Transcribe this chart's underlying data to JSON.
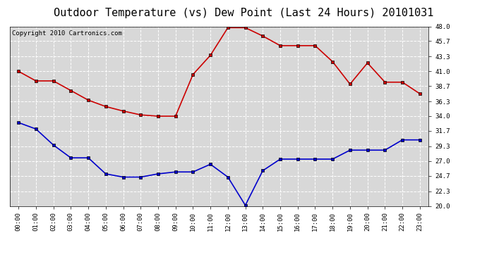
{
  "title": "Outdoor Temperature (vs) Dew Point (Last 24 Hours) 20101031",
  "copyright": "Copyright 2010 Cartronics.com",
  "hours": [
    "00:00",
    "01:00",
    "02:00",
    "03:00",
    "04:00",
    "05:00",
    "06:00",
    "07:00",
    "08:00",
    "09:00",
    "10:00",
    "11:00",
    "12:00",
    "13:00",
    "14:00",
    "15:00",
    "16:00",
    "17:00",
    "18:00",
    "19:00",
    "20:00",
    "21:00",
    "22:00",
    "23:00"
  ],
  "temp": [
    41.0,
    39.5,
    39.5,
    38.0,
    36.5,
    35.5,
    34.8,
    34.2,
    34.0,
    34.0,
    40.5,
    43.5,
    47.8,
    47.8,
    46.5,
    45.0,
    45.0,
    45.0,
    42.5,
    39.0,
    42.3,
    39.3,
    39.3,
    37.5
  ],
  "dew": [
    33.0,
    32.0,
    29.5,
    27.5,
    27.5,
    25.0,
    24.5,
    24.5,
    25.0,
    25.3,
    25.3,
    26.5,
    24.5,
    20.1,
    25.5,
    27.3,
    27.3,
    27.3,
    27.3,
    28.7,
    28.7,
    28.7,
    30.3,
    30.3
  ],
  "temp_color": "#cc0000",
  "dew_color": "#0000cc",
  "bg_color": "#ffffff",
  "plot_bg": "#d8d8d8",
  "grid_color": "#ffffff",
  "ylim_min": 20.0,
  "ylim_max": 48.0,
  "yticks": [
    20.0,
    22.3,
    24.7,
    27.0,
    29.3,
    31.7,
    34.0,
    36.3,
    38.7,
    41.0,
    43.3,
    45.7,
    48.0
  ],
  "title_fontsize": 11,
  "copyright_fontsize": 6.5,
  "marker": "s",
  "marker_size": 3,
  "linewidth": 1.2
}
